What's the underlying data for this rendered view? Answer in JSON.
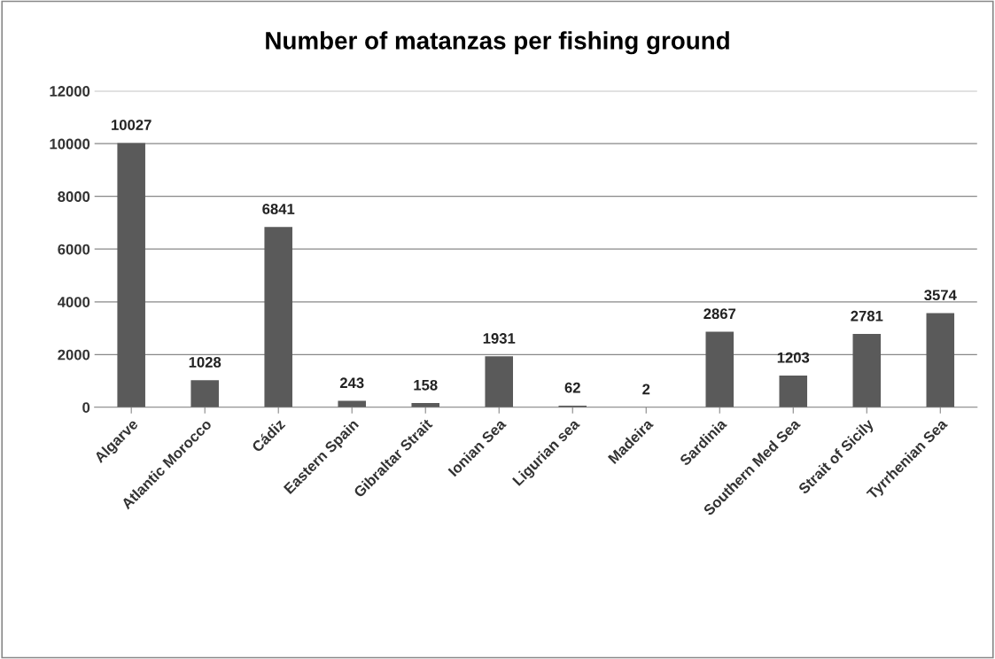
{
  "chart_data": {
    "type": "bar",
    "title": "Number of matanzas per fishing ground",
    "categories": [
      "Algarve",
      "Atlantic Morocco",
      "Cádiz",
      "Eastern Spain",
      "Gibraltar Strait",
      "Ionian Sea",
      "Ligurian sea",
      "Madeira",
      "Sardinia",
      "Southern Med Sea",
      "Strait of Sicily",
      "Tyrrhenian Sea"
    ],
    "values": [
      10027,
      1028,
      6841,
      243,
      158,
      1931,
      62,
      2,
      2867,
      1203,
      2781,
      3574
    ],
    "color": "#5a5a5a",
    "ylim": [
      0,
      12000
    ],
    "yticks": [
      0,
      2000,
      4000,
      6000,
      8000,
      10000,
      12000
    ],
    "grid": "y",
    "data_labels": true,
    "legend": false
  }
}
